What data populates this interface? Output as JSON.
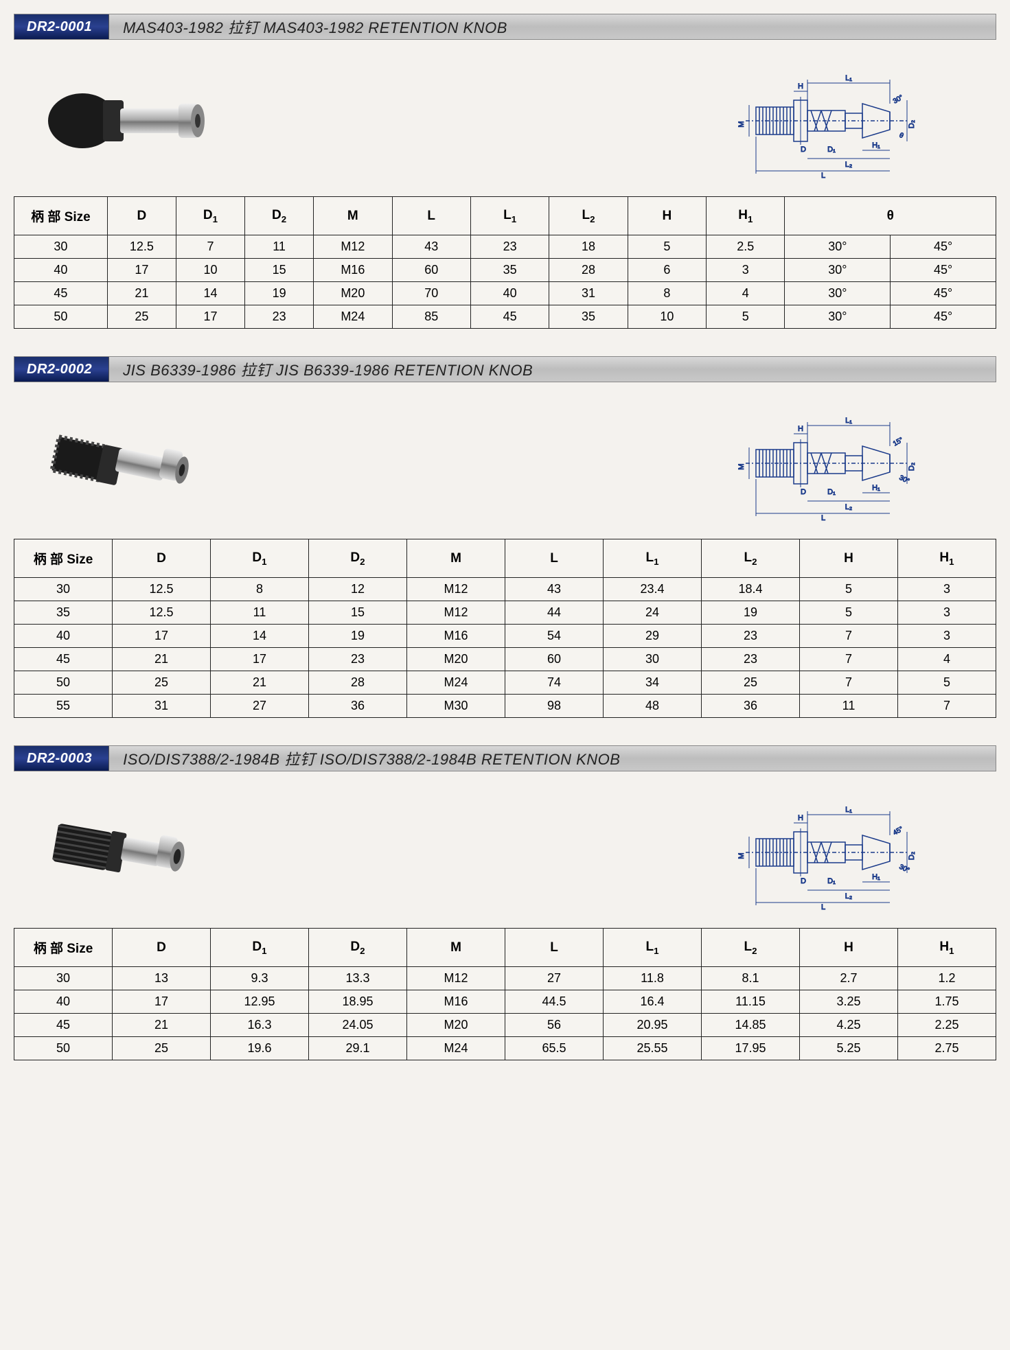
{
  "page": {
    "background_color": "#f4f2ee",
    "border_color": "#222222",
    "header_gradient_dark": [
      "#1a2e6b",
      "#2a4090",
      "#0a1a50"
    ],
    "header_gradient_light": [
      "#d8d8d8",
      "#bdbdbd",
      "#c8c8c8"
    ]
  },
  "sections": [
    {
      "code": "DR2-0001",
      "title": "MAS403-1982 拉钉  MAS403-1982 RETENTION KNOB",
      "diagram_labels": [
        "M",
        "D",
        "D₁",
        "D₂",
        "L",
        "L₁",
        "L₂",
        "H",
        "H₁",
        "30°",
        "θ"
      ],
      "table": {
        "columns": [
          "柄 部 Size",
          "D",
          "D₁",
          "D₂",
          "M",
          "L",
          "L₁",
          "L₂",
          "H",
          "H₁",
          "θ"
        ],
        "theta_colspan": 2,
        "col_widths_pct": [
          9.5,
          7,
          7,
          7,
          8,
          8,
          8,
          8,
          8,
          8,
          10.75,
          10.75
        ],
        "rows": [
          [
            "30",
            "12.5",
            "7",
            "11",
            "M12",
            "43",
            "23",
            "18",
            "5",
            "2.5",
            "30°",
            "45°"
          ],
          [
            "40",
            "17",
            "10",
            "15",
            "M16",
            "60",
            "35",
            "28",
            "6",
            "3",
            "30°",
            "45°"
          ],
          [
            "45",
            "21",
            "14",
            "19",
            "M20",
            "70",
            "40",
            "31",
            "8",
            "4",
            "30°",
            "45°"
          ],
          [
            "50",
            "25",
            "17",
            "23",
            "M24",
            "85",
            "45",
            "35",
            "10",
            "5",
            "30°",
            "45°"
          ]
        ]
      }
    },
    {
      "code": "DR2-0002",
      "title": "JIS B6339-1986 拉钉 JIS B6339-1986 RETENTION KNOB",
      "diagram_labels": [
        "M",
        "D",
        "D₁",
        "D₂",
        "L",
        "L₁",
        "L₂",
        "H",
        "H₁",
        "15°",
        "30°"
      ],
      "table": {
        "columns": [
          "柄 部 Size",
          "D",
          "D₁",
          "D₂",
          "M",
          "L",
          "L₁",
          "L₂",
          "H",
          "H₁"
        ],
        "col_widths_pct": [
          10,
          10,
          10,
          10,
          10,
          10,
          10,
          10,
          10,
          10
        ],
        "rows": [
          [
            "30",
            "12.5",
            "8",
            "12",
            "M12",
            "43",
            "23.4",
            "18.4",
            "5",
            "3"
          ],
          [
            "35",
            "12.5",
            "11",
            "15",
            "M12",
            "44",
            "24",
            "19",
            "5",
            "3"
          ],
          [
            "40",
            "17",
            "14",
            "19",
            "M16",
            "54",
            "29",
            "23",
            "7",
            "3"
          ],
          [
            "45",
            "21",
            "17",
            "23",
            "M20",
            "60",
            "30",
            "23",
            "7",
            "4"
          ],
          [
            "50",
            "25",
            "21",
            "28",
            "M24",
            "74",
            "34",
            "25",
            "7",
            "5"
          ],
          [
            "55",
            "31",
            "27",
            "36",
            "M30",
            "98",
            "48",
            "36",
            "11",
            "7"
          ]
        ]
      }
    },
    {
      "code": "DR2-0003",
      "title": "ISO/DIS7388/2-1984B 拉钉 ISO/DIS7388/2-1984B RETENTION KNOB",
      "diagram_labels": [
        "M",
        "D",
        "D₁",
        "D₂",
        "L",
        "L₁",
        "L₂",
        "H",
        "H₁",
        "45°",
        "30°"
      ],
      "table": {
        "columns": [
          "柄 部 Size",
          "D",
          "D₁",
          "D₂",
          "M",
          "L",
          "L₁",
          "L₂",
          "H",
          "H₁"
        ],
        "col_widths_pct": [
          10,
          10,
          10,
          10,
          10,
          10,
          10,
          10,
          10,
          10
        ],
        "rows": [
          [
            "30",
            "13",
            "9.3",
            "13.3",
            "M12",
            "27",
            "11.8",
            "8.1",
            "2.7",
            "1.2"
          ],
          [
            "40",
            "17",
            "12.95",
            "18.95",
            "M16",
            "44.5",
            "16.4",
            "11.15",
            "3.25",
            "1.75"
          ],
          [
            "45",
            "21",
            "16.3",
            "24.05",
            "M20",
            "56",
            "20.95",
            "14.85",
            "4.25",
            "2.25"
          ],
          [
            "50",
            "25",
            "19.6",
            "29.1",
            "M24",
            "65.5",
            "25.55",
            "17.95",
            "5.25",
            "2.75"
          ]
        ]
      }
    }
  ]
}
